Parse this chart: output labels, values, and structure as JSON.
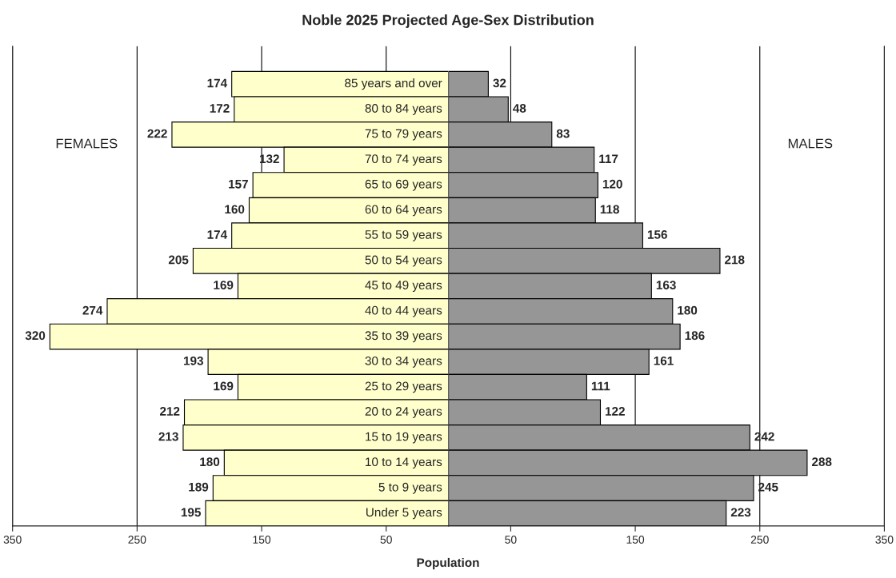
{
  "chart_data": [
    {
      "type": "bar",
      "orientation": "horizontal",
      "title": "Noble 2025 Projected Age-Sex Distribution",
      "xlabel": "Population",
      "categories": [
        "85 years and over",
        "80 to 84 years",
        "75 to 79 years",
        "70 to 74 years",
        "65 to 69 years",
        "60 to 64 years",
        "55 to 59 years",
        "50 to 54 years",
        "45 to 49 years",
        "40 to 44 years",
        "35 to 39 years",
        "30 to 34 years",
        "25 to 29 years",
        "20 to 24 years",
        "15 to 19 years",
        "10 to 14 years",
        "5 to 9 years",
        "Under 5 years"
      ],
      "series": [
        {
          "color": "#ffffcc",
          "values": [
            174,
            172,
            222,
            132,
            157,
            160,
            174,
            205,
            169,
            274,
            320,
            193,
            169,
            212,
            213,
            180,
            189,
            195
          ]
        }
      ],
      "data_labels": true,
      "xlim": [
        350,
        0
      ],
      "xticks": [
        350,
        250,
        150,
        50
      ],
      "grid": "x",
      "annotations": [
        "FEMALES"
      ]
    },
    {
      "type": "bar",
      "orientation": "horizontal",
      "categories": [
        null,
        null,
        null,
        null,
        null,
        null,
        null,
        null,
        null,
        null,
        null,
        null,
        null,
        null,
        null,
        null,
        null,
        null
      ],
      "series": [
        {
          "color": "#969696",
          "values": [
            32,
            48,
            83,
            117,
            120,
            118,
            156,
            218,
            163,
            180,
            186,
            161,
            111,
            122,
            242,
            288,
            245,
            223
          ]
        }
      ],
      "data_labels": true,
      "xlim": [
        0,
        350
      ],
      "xticks": [
        50,
        150,
        250,
        350
      ],
      "grid": "x",
      "tick_labels": "x",
      "annotations": [
        "MALES"
      ]
    }
  ]
}
